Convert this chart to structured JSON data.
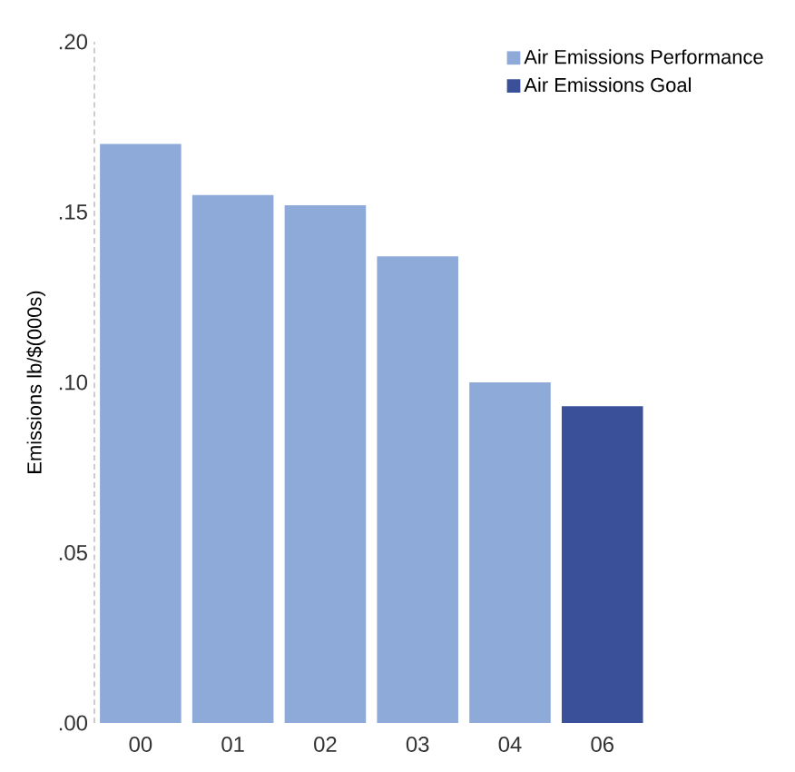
{
  "chart_data": {
    "type": "bar",
    "ylabel": "Emissions lb/$(000s)",
    "categories": [
      "00",
      "01",
      "02",
      "03",
      "04",
      "06"
    ],
    "series": [
      {
        "name": "Air Emissions Performance",
        "color": "#8eaad8",
        "values": [
          0.17,
          0.155,
          0.152,
          0.137,
          0.1,
          null
        ]
      },
      {
        "name": "Air Emissions Goal",
        "color": "#3a5199",
        "values": [
          null,
          null,
          null,
          null,
          null,
          0.093
        ]
      }
    ],
    "ylim": [
      0,
      0.2
    ],
    "yticks": [
      {
        "value": 0,
        "label": ".00"
      },
      {
        "value": 0.05,
        "label": ".05"
      },
      {
        "value": 0.1,
        "label": ".10"
      },
      {
        "value": 0.15,
        "label": ".15"
      },
      {
        "value": 0.2,
        "label": ".20"
      }
    ],
    "legend": "top right",
    "grid": false
  }
}
